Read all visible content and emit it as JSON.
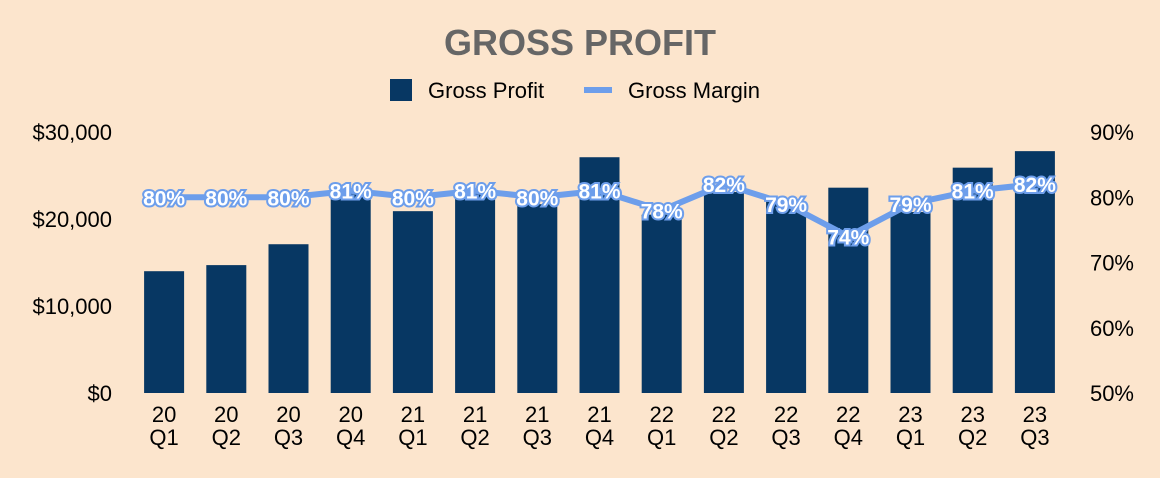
{
  "colors": {
    "background": "#fce5cd",
    "bar": "#073763",
    "line": "#6d9eeb",
    "title": "#666666"
  },
  "chart_data": {
    "type": "bar",
    "title": "GROSS PROFIT",
    "legend": {
      "placement": "top-center",
      "items": [
        "Gross Profit",
        "Gross Margin"
      ]
    },
    "categories": [
      [
        "20",
        "Q1"
      ],
      [
        "20",
        "Q2"
      ],
      [
        "20",
        "Q3"
      ],
      [
        "20",
        "Q4"
      ],
      [
        "21",
        "Q1"
      ],
      [
        "21",
        "Q2"
      ],
      [
        "21",
        "Q3"
      ],
      [
        "21",
        "Q4"
      ],
      [
        "22",
        "Q1"
      ],
      [
        "22",
        "Q2"
      ],
      [
        "22",
        "Q3"
      ],
      [
        "22",
        "Q4"
      ],
      [
        "23",
        "Q1"
      ],
      [
        "23",
        "Q2"
      ],
      [
        "23",
        "Q3"
      ]
    ],
    "series": [
      {
        "name": "Gross Profit",
        "type": "bar",
        "axis": "left",
        "values": [
          14000,
          14700,
          17100,
          23200,
          20900,
          23500,
          21700,
          27100,
          20500,
          23100,
          22000,
          23600,
          20800,
          25900,
          27800
        ]
      },
      {
        "name": "Gross Margin",
        "type": "line",
        "axis": "right",
        "values": [
          80,
          80,
          80,
          81,
          80,
          81,
          80,
          81,
          78,
          82,
          79,
          74,
          79,
          81,
          82
        ],
        "labels": [
          "80%",
          "80%",
          "80%",
          "81%",
          "80%",
          "81%",
          "80%",
          "81%",
          "78%",
          "82%",
          "79%",
          "74%",
          "79%",
          "81%",
          "82%"
        ]
      }
    ],
    "y_left": {
      "ylim": [
        0,
        30000
      ],
      "ticks": [
        0,
        10000,
        20000,
        30000
      ],
      "tick_labels": [
        "$0",
        "$10,000",
        "$20,000",
        "$30,000"
      ]
    },
    "y_right": {
      "ylim": [
        50,
        90
      ],
      "ticks": [
        50,
        60,
        70,
        80,
        90
      ],
      "tick_labels": [
        "50%",
        "60%",
        "70%",
        "80%",
        "90%"
      ]
    },
    "grid": false
  }
}
